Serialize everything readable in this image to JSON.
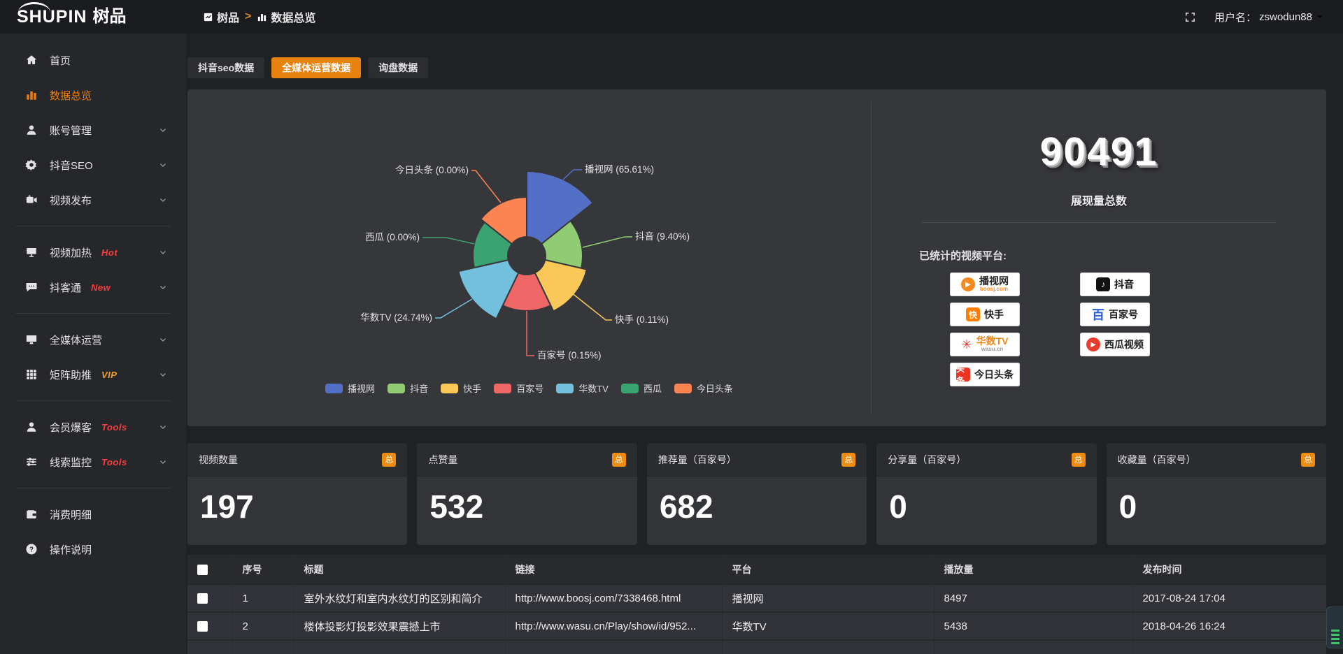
{
  "brand": {
    "logo_en": "SHUPIN",
    "logo_cn": "树品"
  },
  "header": {
    "breadcrumb_home": "树品",
    "breadcrumb_sep": ">",
    "breadcrumb_current": "数据总览",
    "username_label": "用户名：",
    "username": "zswodun88"
  },
  "colors": {
    "accent": "#ed7d0e",
    "badge_red": "#fa3e3e",
    "badge_vip": "#efa02e"
  },
  "sidebar": {
    "items": [
      {
        "icon": "home",
        "label": "首页"
      },
      {
        "icon": "chart-bars",
        "label": "数据总览",
        "active": true
      },
      {
        "icon": "user",
        "label": "账号管理",
        "chevron": true
      },
      {
        "icon": "gear",
        "label": "抖音SEO",
        "chevron": true
      },
      {
        "icon": "video",
        "label": "视频发布",
        "chevron": true
      },
      {
        "divider": true
      },
      {
        "icon": "heat",
        "label": "视频加热",
        "badge": "Hot",
        "badge_color": "#fa3e3e",
        "chevron": true
      },
      {
        "icon": "chat",
        "label": "抖客通",
        "badge": "New",
        "badge_color": "#fa3e3e",
        "chevron": true
      },
      {
        "divider": true
      },
      {
        "icon": "monitor",
        "label": "全媒体运营",
        "chevron": true
      },
      {
        "icon": "grid",
        "label": "矩阵助推",
        "badge": "VIP",
        "badge_color": "#efa02e",
        "chevron": true
      },
      {
        "divider": true
      },
      {
        "icon": "person",
        "label": "会员爆客",
        "badge": "Tools",
        "badge_color": "#fa3e3e",
        "chevron": true
      },
      {
        "icon": "sliders",
        "label": "线索监控",
        "badge": "Tools",
        "badge_color": "#fa3e3e",
        "chevron": true
      },
      {
        "divider": true
      },
      {
        "icon": "wallet",
        "label": "消费明细"
      },
      {
        "icon": "help",
        "label": "操作说明"
      }
    ]
  },
  "tabs": [
    {
      "label": "抖音seo数据",
      "active": false
    },
    {
      "label": "全媒体运营数据",
      "active": true
    },
    {
      "label": "询盘数据",
      "active": false
    }
  ],
  "chart_data": {
    "type": "pie",
    "subtype": "rose",
    "title": "",
    "legend_position": "bottom",
    "center": [
      485,
      238
    ],
    "hole_radius": 27,
    "categories": [
      "播视网",
      "抖音",
      "快手",
      "百家号",
      "华数TV",
      "西瓜",
      "今日头条"
    ],
    "values": [
      65.61,
      9.4,
      0.11,
      0.15,
      24.74,
      0.0,
      0.0
    ],
    "series": [
      {
        "name": "播视网",
        "pct": 65.61,
        "label": "播视网 (65.61%)",
        "color": "#5470c6",
        "radius": 121,
        "label_line": [
          [
            537,
            129
          ],
          [
            552,
            115
          ],
          [
            564,
            115
          ]
        ],
        "label_pos": [
          568,
          119
        ],
        "label_anchor": "start"
      },
      {
        "name": "抖音",
        "pct": 9.4,
        "label": "抖音 (9.40%)",
        "color": "#91cc75",
        "radius": 80,
        "label_line": [
          [
            565,
            226
          ],
          [
            625,
            211
          ],
          [
            636,
            211
          ]
        ],
        "label_pos": [
          640,
          215
        ],
        "label_anchor": "start"
      },
      {
        "name": "快手",
        "pct": 0.11,
        "label": "快手 (0.11%)",
        "color": "#fac858",
        "radius": 88,
        "label_line": [
          [
            549,
            291
          ],
          [
            598,
            330
          ],
          [
            607,
            330
          ]
        ],
        "label_pos": [
          611,
          334
        ],
        "label_anchor": "start"
      },
      {
        "name": "百家号",
        "pct": 0.15,
        "label": "百家号 (0.15%)",
        "color": "#ee6666",
        "radius": 79,
        "label_line": [
          [
            485,
            317
          ],
          [
            485,
            381
          ],
          [
            496,
            381
          ]
        ],
        "label_pos": [
          500,
          385
        ],
        "label_anchor": "start"
      },
      {
        "name": "华数TV",
        "pct": 24.74,
        "label": "华数TV (24.74%)",
        "color": "#73c0de",
        "radius": 100,
        "label_line": [
          [
            407,
            300
          ],
          [
            362,
            327
          ],
          [
            354,
            327
          ]
        ],
        "label_pos": [
          350,
          331
        ],
        "label_anchor": "end"
      },
      {
        "name": "西瓜",
        "pct": 0.0,
        "label": "西瓜 (0.00%)",
        "color": "#3ba272",
        "radius": 77,
        "label_line": [
          [
            410,
            221
          ],
          [
            370,
            212
          ],
          [
            336,
            212
          ]
        ],
        "label_pos": [
          332,
          216
        ],
        "label_anchor": "end"
      },
      {
        "name": "今日头条",
        "pct": 0.0,
        "label": "今日头条 (0.00%)",
        "color": "#fc8452",
        "radius": 84,
        "label_line": [
          [
            448,
            162
          ],
          [
            412,
            116
          ],
          [
            406,
            116
          ]
        ],
        "label_pos": [
          402,
          120
        ],
        "label_anchor": "end"
      }
    ]
  },
  "summary": {
    "total": "90491",
    "total_label": "展现量总数",
    "platforms_label": "已统计的视频平台:",
    "platforms": [
      {
        "name": "播视网",
        "sub": "boosj.com",
        "glyph": "▶",
        "shape": "circle",
        "glyph_bg": "#f6891e",
        "glyph_color": "#fff",
        "name_color": "#222",
        "sub_color": "#f6891e"
      },
      {
        "name": "抖音",
        "glyph": "♪",
        "shape": "square",
        "glyph_bg": "#121212",
        "glyph_color": "#fff",
        "name_color": "#111"
      },
      {
        "name": "快手",
        "glyph": "快",
        "shape": "square",
        "glyph_bg": "#ff7e00",
        "glyph_color": "#fff",
        "name_color": "#222"
      },
      {
        "name": "百家号",
        "glyph": "百",
        "shape": "plain",
        "glyph_bg": "transparent",
        "glyph_color": "#2b5bd7",
        "name_color": "#222"
      },
      {
        "name": "华数TV",
        "sub": "wasu.cn",
        "glyph": "✳",
        "shape": "plain",
        "glyph_bg": "transparent",
        "glyph_color": "#e03a2f",
        "name_color": "#f08519",
        "sub_color": "#999"
      },
      {
        "name": "西瓜视频",
        "glyph": "▶",
        "shape": "circle",
        "glyph_bg": "#eb3b2c",
        "glyph_color": "#fff",
        "name_color": "#222"
      },
      {
        "name": "今日头条",
        "glyph": "头条",
        "shape": "square",
        "glyph_bg": "#ed3321",
        "glyph_color": "#fff",
        "name_color": "#222"
      }
    ]
  },
  "stats_cards": [
    {
      "title": "视频数量",
      "badge": "总",
      "value": "197"
    },
    {
      "title": "点赞量",
      "badge": "总",
      "value": "532"
    },
    {
      "title": "推荐量（百家号）",
      "badge": "总",
      "value": "682"
    },
    {
      "title": "分享量（百家号）",
      "badge": "总",
      "value": "0"
    },
    {
      "title": "收藏量（百家号）",
      "badge": "总",
      "value": "0"
    }
  ],
  "table": {
    "columns": [
      "",
      "序号",
      "标题",
      "链接",
      "平台",
      "播放量",
      "发布时间"
    ],
    "rows": [
      {
        "index": "1",
        "title": "室外水纹灯和室内水纹灯的区别和简介",
        "link": "http://www.boosj.com/7338468.html",
        "platform": "播视网",
        "plays": "8497",
        "time": "2017-08-24 17:04"
      },
      {
        "index": "2",
        "title": "楼体投影灯投影效果震撼上市",
        "link": "http://www.wasu.cn/Play/show/id/952...",
        "platform": "华数TV",
        "plays": "5438",
        "time": "2018-04-26 16:24"
      },
      {
        "index": "",
        "title": "",
        "link": "",
        "platform": "",
        "plays": "",
        "time": ""
      }
    ]
  }
}
